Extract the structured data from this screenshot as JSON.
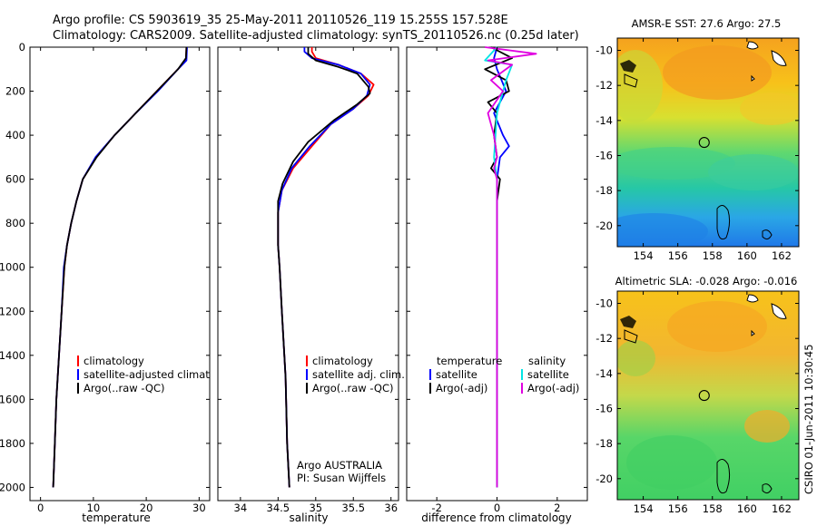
{
  "header": {
    "line1": "Argo profile: CS 5903619_35 25-May-2011 20110526_119 15.255S 157.528E",
    "line2": "Climatology: CARS2009. Satellite-adjusted climatology: synTS_20110526.nc (0.25d later)"
  },
  "colors": {
    "climatology": "#ff0000",
    "satellite": "#0000ff",
    "argo": "#000000",
    "temp_sat_diff": "#00e5e5",
    "sal_sat_diff": "#00d8e8",
    "sal_argo_diff": "#e000e0"
  },
  "chart_data": [
    {
      "id": "temperature",
      "type": "line",
      "xlabel": "temperature",
      "ylabel": "",
      "xlim": [
        -2,
        32
      ],
      "ylim": [
        2060,
        0
      ],
      "xticks": [
        0,
        10,
        20,
        30
      ],
      "yticks": [
        0,
        200,
        400,
        600,
        800,
        1000,
        1200,
        1400,
        1600,
        1800,
        2000
      ],
      "legend": {
        "placement": "center-bottom",
        "entries": [
          "climatology",
          "satellite-adjusted climatology",
          "Argo(..raw -QC)"
        ]
      },
      "series": [
        {
          "name": "climatology",
          "color": "#ff0000",
          "points": [
            [
              27.6,
              0
            ],
            [
              27.5,
              60
            ],
            [
              26,
              100
            ],
            [
              22,
              200
            ],
            [
              18,
              300
            ],
            [
              14,
              400
            ],
            [
              10.5,
              500
            ],
            [
              8,
              600
            ],
            [
              6.8,
              700
            ],
            [
              5.8,
              800
            ],
            [
              5.0,
              900
            ],
            [
              4.5,
              1000
            ],
            [
              4.0,
              1200
            ],
            [
              3.5,
              1400
            ],
            [
              3.0,
              1600
            ],
            [
              2.7,
              1800
            ],
            [
              2.4,
              2000
            ]
          ]
        },
        {
          "name": "satellite-adjusted climatology",
          "color": "#0000ff",
          "points": [
            [
              27.7,
              0
            ],
            [
              27.6,
              60
            ],
            [
              26,
              100
            ],
            [
              22.2,
              200
            ],
            [
              18,
              300
            ],
            [
              14,
              400
            ],
            [
              10.4,
              500
            ],
            [
              8,
              600
            ],
            [
              6.8,
              700
            ],
            [
              5.8,
              800
            ],
            [
              5.0,
              900
            ],
            [
              4.4,
              1000
            ],
            [
              4.0,
              1200
            ],
            [
              3.5,
              1400
            ],
            [
              3.0,
              1600
            ],
            [
              2.7,
              1800
            ],
            [
              2.4,
              2000
            ]
          ]
        },
        {
          "name": "Argo(..raw -QC)",
          "color": "#000000",
          "points": [
            [
              27.6,
              0
            ],
            [
              27.5,
              50
            ],
            [
              26,
              100
            ],
            [
              22,
              200
            ],
            [
              18,
              300
            ],
            [
              14,
              400
            ],
            [
              10.6,
              500
            ],
            [
              8,
              600
            ],
            [
              6.8,
              700
            ],
            [
              5.8,
              800
            ],
            [
              5.0,
              900
            ],
            [
              4.5,
              1000
            ],
            [
              4.0,
              1200
            ],
            [
              3.5,
              1400
            ],
            [
              3.0,
              1600
            ],
            [
              2.7,
              1800
            ],
            [
              2.4,
              2000
            ]
          ]
        }
      ]
    },
    {
      "id": "salinity",
      "type": "line",
      "xlabel": "salinity",
      "xlim": [
        33.7,
        36.1
      ],
      "ylim": [
        2060,
        0
      ],
      "xticks": [
        34,
        34.5,
        35,
        35.5,
        36
      ],
      "legend": {
        "placement": "center-bottom",
        "entries": [
          "climatology",
          "satellite adj. clim.",
          "Argo(..raw -QC)"
        ]
      },
      "note": [
        "Argo AUSTRALIA",
        "PI: Susan Wijffels"
      ],
      "series": [
        {
          "name": "climatology",
          "color": "#ff0000",
          "points": [
            [
              34.95,
              0
            ],
            [
              34.95,
              20
            ],
            [
              35.0,
              50
            ],
            [
              35.3,
              80
            ],
            [
              35.6,
              120
            ],
            [
              35.77,
              170
            ],
            [
              35.7,
              220
            ],
            [
              35.5,
              280
            ],
            [
              35.2,
              350
            ],
            [
              34.95,
              450
            ],
            [
              34.7,
              550
            ],
            [
              34.55,
              650
            ],
            [
              34.5,
              750
            ],
            [
              34.5,
              900
            ],
            [
              34.52,
              1000
            ],
            [
              34.55,
              1200
            ],
            [
              34.6,
              1500
            ],
            [
              34.62,
              1800
            ],
            [
              34.65,
              2000
            ]
          ]
        },
        {
          "name": "satellite adj. clim.",
          "color": "#0000ff",
          "points": [
            [
              34.85,
              0
            ],
            [
              34.85,
              20
            ],
            [
              34.95,
              50
            ],
            [
              35.3,
              80
            ],
            [
              35.6,
              120
            ],
            [
              35.72,
              170
            ],
            [
              35.68,
              220
            ],
            [
              35.5,
              280
            ],
            [
              35.2,
              350
            ],
            [
              34.92,
              450
            ],
            [
              34.68,
              550
            ],
            [
              34.55,
              650
            ],
            [
              34.5,
              750
            ],
            [
              34.5,
              900
            ],
            [
              34.52,
              1000
            ],
            [
              34.55,
              1200
            ],
            [
              34.6,
              1500
            ],
            [
              34.62,
              1800
            ],
            [
              34.65,
              2000
            ]
          ]
        },
        {
          "name": "Argo(..raw -QC)",
          "color": "#000000",
          "points": [
            [
              34.9,
              0
            ],
            [
              34.9,
              30
            ],
            [
              35.0,
              60
            ],
            [
              35.3,
              90
            ],
            [
              35.55,
              120
            ],
            [
              35.7,
              180
            ],
            [
              35.72,
              210
            ],
            [
              35.55,
              260
            ],
            [
              35.25,
              330
            ],
            [
              34.9,
              430
            ],
            [
              34.7,
              520
            ],
            [
              34.56,
              620
            ],
            [
              34.5,
              700
            ],
            [
              34.5,
              900
            ],
            [
              34.52,
              1000
            ],
            [
              34.55,
              1200
            ],
            [
              34.6,
              1500
            ],
            [
              34.62,
              1800
            ],
            [
              34.65,
              2000
            ]
          ]
        }
      ]
    },
    {
      "id": "difference",
      "type": "line",
      "xlabel": "difference from climatology",
      "xlim": [
        -3,
        3
      ],
      "ylim": [
        2060,
        0
      ],
      "xticks": [
        -2,
        0,
        2
      ],
      "legend": {
        "placement": "center-bottom",
        "groups": [
          {
            "title": "temperature",
            "entries": [
              "satellite",
              "Argo(-adj)"
            ]
          },
          {
            "title": "salinity",
            "entries": [
              "satellite",
              "Argo(-adj)"
            ]
          }
        ]
      },
      "series": [
        {
          "name": "temperature satellite",
          "color": "#0000ff",
          "points": [
            [
              0,
              0
            ],
            [
              -0.1,
              50
            ],
            [
              0,
              100
            ],
            [
              0.3,
              200
            ],
            [
              -0.1,
              300
            ],
            [
              0.2,
              400
            ],
            [
              0.4,
              450
            ],
            [
              0.1,
              500
            ],
            [
              0,
              600
            ],
            [
              0,
              800
            ],
            [
              0,
              1000
            ],
            [
              0,
              1500
            ],
            [
              0,
              2000
            ]
          ]
        },
        {
          "name": "temperature Argo(-adj)",
          "color": "#000000",
          "points": [
            [
              -0.2,
              0
            ],
            [
              0.5,
              50
            ],
            [
              -0.4,
              100
            ],
            [
              0.3,
              150
            ],
            [
              0.4,
              200
            ],
            [
              -0.3,
              250
            ],
            [
              0,
              300
            ],
            [
              -0.1,
              400
            ],
            [
              0,
              500
            ],
            [
              -0.2,
              550
            ],
            [
              0.1,
              600
            ],
            [
              0,
              700
            ],
            [
              0,
              800
            ],
            [
              0,
              1000
            ],
            [
              0,
              1500
            ],
            [
              0,
              2000
            ]
          ]
        },
        {
          "name": "salinity satellite",
          "color": "#00e5e5",
          "points": [
            [
              0,
              0
            ],
            [
              -0.4,
              60
            ],
            [
              0.5,
              80
            ],
            [
              0.3,
              150
            ],
            [
              0,
              300
            ],
            [
              -0.1,
              500
            ],
            [
              0,
              600
            ],
            [
              0,
              800
            ],
            [
              0,
              1000
            ],
            [
              0,
              1500
            ],
            [
              0,
              2000
            ]
          ]
        },
        {
          "name": "salinity Argo(-adj)",
          "color": "#e000e0",
          "points": [
            [
              -0.4,
              0
            ],
            [
              1.3,
              30
            ],
            [
              -0.3,
              60
            ],
            [
              0.5,
              80
            ],
            [
              -0.2,
              150
            ],
            [
              0.2,
              200
            ],
            [
              -0.3,
              300
            ],
            [
              -0.1,
              400
            ],
            [
              0,
              500
            ],
            [
              -0.1,
              550
            ],
            [
              0,
              600
            ],
            [
              0,
              800
            ],
            [
              0,
              1000
            ],
            [
              0,
              1500
            ],
            [
              0,
              2000
            ]
          ]
        }
      ]
    },
    {
      "id": "sst_map",
      "type": "heatmap",
      "title": "AMSR-E SST: 27.6 Argo: 27.5",
      "xlim": [
        152.5,
        163
      ],
      "ylim": [
        -21.2,
        -9.3
      ],
      "xticks": [
        154,
        156,
        158,
        160,
        162
      ],
      "yticks": [
        -10,
        -12,
        -14,
        -16,
        -18,
        -20
      ],
      "argo_position": {
        "lon": 157.528,
        "lat": -15.255
      }
    },
    {
      "id": "sla_map",
      "type": "heatmap",
      "title": "Altimetric SLA: -0.028 Argo: -0.016",
      "xlim": [
        152.5,
        163
      ],
      "ylim": [
        -21.2,
        -9.3
      ],
      "xticks": [
        154,
        156,
        158,
        160,
        162
      ],
      "yticks": [
        -10,
        -12,
        -14,
        -16,
        -18,
        -20
      ],
      "argo_position": {
        "lon": 157.528,
        "lat": -15.255
      }
    }
  ],
  "footer_vertical": "CSIRO 01-Jun-2011 10:30:45"
}
